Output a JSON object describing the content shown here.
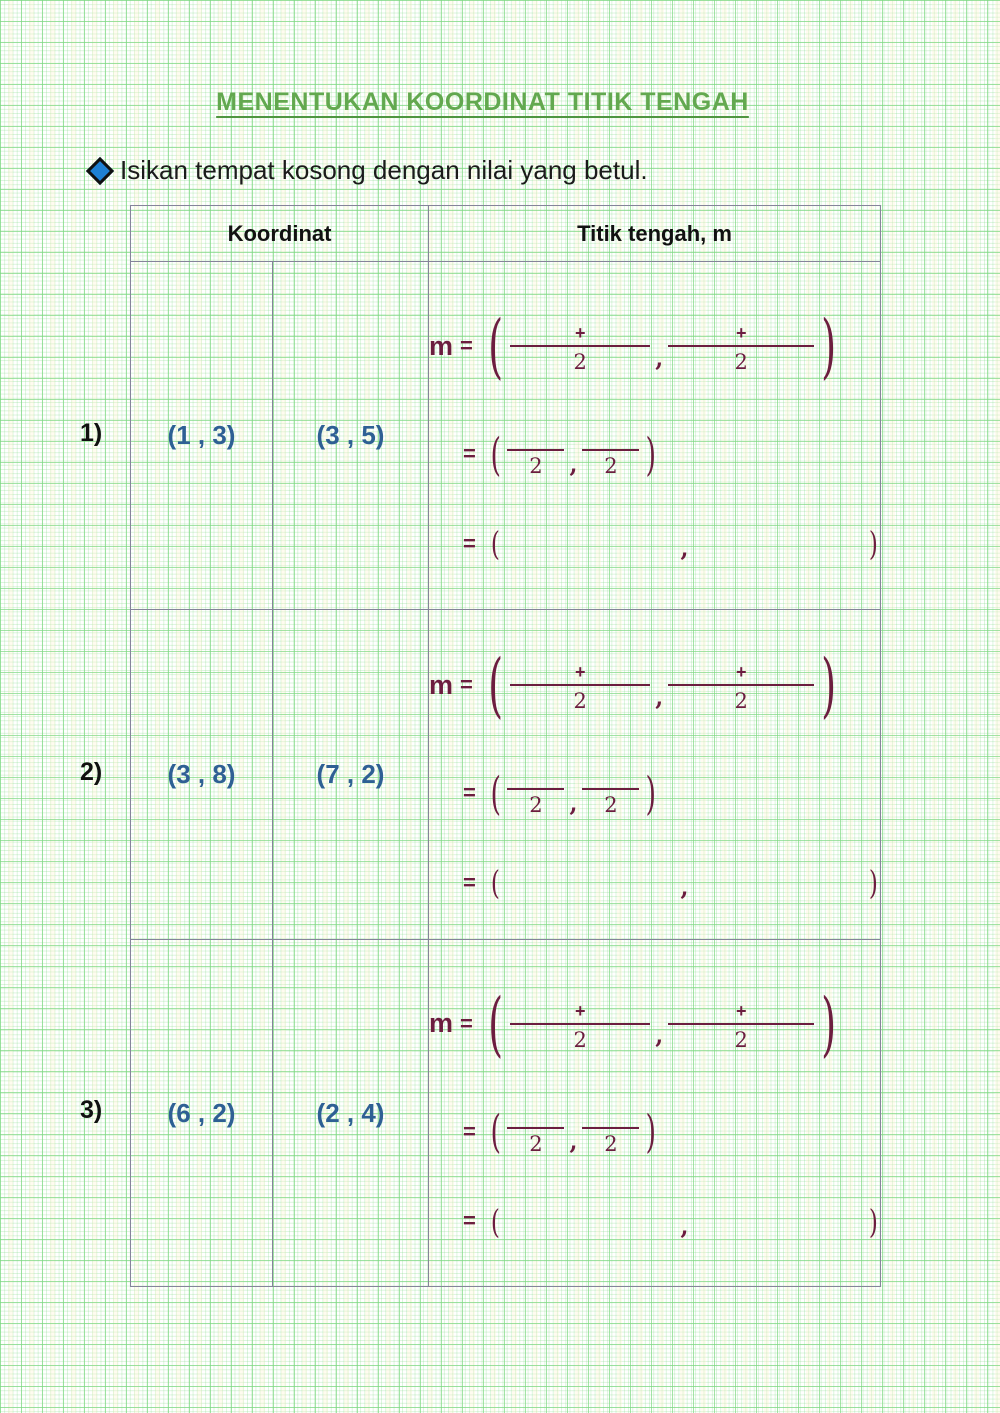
{
  "page": {
    "title": "MENENTUKAN KOORDINAT TITIK TENGAH",
    "instruction": "Isikan tempat kosong dengan nilai yang betul."
  },
  "table": {
    "header": {
      "koordinat": "Koordinat",
      "titik_tengah": "Titik tengah, m"
    },
    "rows": [
      {
        "label": "1)",
        "coord1": "(1 , 3)",
        "coord2": "(3 , 5)"
      },
      {
        "label": "2)",
        "coord1": "(3 , 8)",
        "coord2": "(7 , 2)"
      },
      {
        "label": "3)",
        "coord1": "(6 , 2)",
        "coord2": "(2 , 4)"
      }
    ]
  },
  "formula": {
    "m": "m",
    "equals": "=",
    "open_paren": "(",
    "close_paren": ")",
    "plus": "+",
    "denominator": "2",
    "comma": ","
  },
  "colors": {
    "title_green": "#63a84f",
    "underline_green": "#4f9640",
    "coordinate_blue": "#2e6094",
    "formula_maroon": "#6c1d3f",
    "diamond_blue": "#1e80d4",
    "table_border": "#85849a",
    "grid_green": "#7dd882"
  }
}
